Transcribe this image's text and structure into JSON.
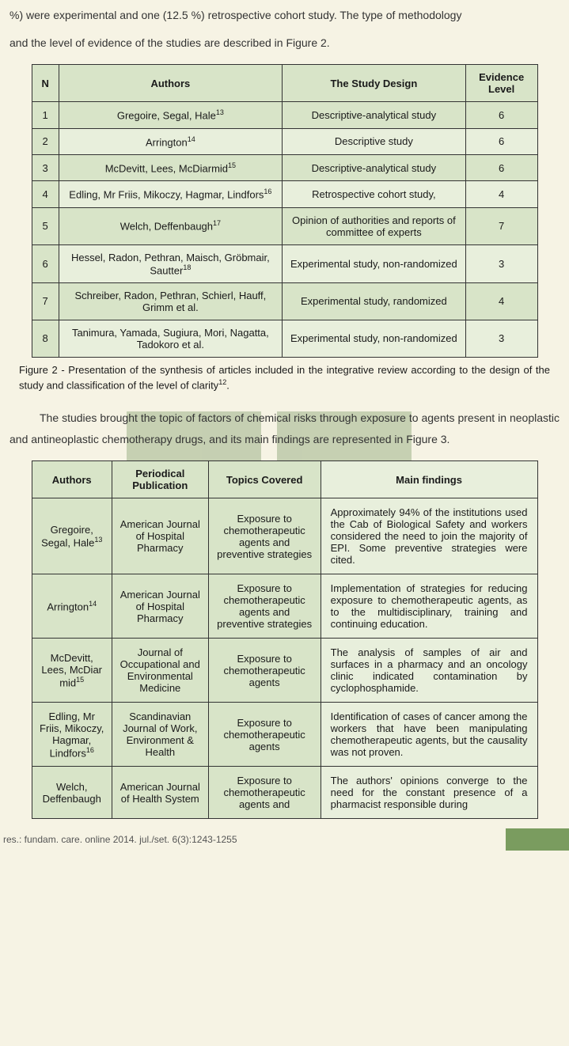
{
  "colors": {
    "page_bg": "#f6f3e4",
    "table_header_bg": "#d8e4c8",
    "table_alt_bg": "#e8efdc",
    "border": "#333333",
    "text": "#1a1a1a",
    "footer_block": "#7a9c5f",
    "watermark": "#6d8f56"
  },
  "typography": {
    "body_family": "Trebuchet MS",
    "body_size_pt": 11,
    "table_size_pt": 10,
    "lineheight": 1.9
  },
  "intro_top": "%) were experimental and one (12.5 %) retrospective cohort study. The type of methodology",
  "intro_top2": "and the level of evidence of the studies are described in Figure 2.",
  "table1": {
    "headers": [
      "N",
      "Authors",
      "The Study Design",
      "Evidence Level"
    ],
    "rows": [
      {
        "n": "1",
        "authors": "Gregoire, Segal, Hale",
        "ref": "13",
        "design": "Descriptive-analytical study",
        "evidence": "6"
      },
      {
        "n": "2",
        "authors": "Arrington",
        "ref": "14",
        "design": "Descriptive study",
        "evidence": "6"
      },
      {
        "n": "3",
        "authors": "McDevitt, Lees, McDiarmid",
        "ref": "15",
        "design": "Descriptive-analytical study",
        "evidence": "6"
      },
      {
        "n": "4",
        "authors": "Edling, Mr Friis, Mikoczy, Hagmar, Lindfors",
        "ref": "16",
        "design": "Retrospective cohort study,",
        "evidence": "4"
      },
      {
        "n": "5",
        "authors": "Welch, Deffenbaugh",
        "ref": "17",
        "design": "Opinion of authorities and reports of committee of experts",
        "evidence": "7"
      },
      {
        "n": "6",
        "authors": "Hessel, Radon, Pethran, Maisch, Gröbmair, Sautter",
        "ref": "18",
        "design": "Experimental study, non-randomized",
        "evidence": "3"
      },
      {
        "n": "7",
        "authors": "Schreiber, Radon, Pethran, Schierl, Hauff, Grimm et al.",
        "ref": "",
        "design": "Experimental study, randomized",
        "evidence": "4"
      },
      {
        "n": "8",
        "authors": "Tanimura, Yamada, Sugiura, Mori, Nagatta, Tadokoro et al.",
        "ref": "",
        "design": "Experimental study, non-randomized",
        "evidence": "3"
      }
    ]
  },
  "caption1": "Figure 2 - Presentation of the synthesis of articles included in the integrative review according to the design of the study and classification of the level of clarity",
  "caption1_ref": "12",
  "para_mid": "The studies brought the topic of factors of chemical risks through exposure to agents present in neoplastic and antineoplastic chemotherapy drugs, and its main findings are represented in Figure 3.",
  "table2": {
    "headers": [
      "Authors",
      "Periodical Publication",
      "Topics Covered",
      "Main findings"
    ],
    "rows": [
      {
        "authors": "Gregoire, Segal, Hale",
        "ref": "13",
        "journal": "American Journal of Hospital Pharmacy",
        "topics": "Exposure to chemotherapeutic agents and preventive strategies",
        "findings": "Approximately 94% of the institutions used the Cab of Biological Safety and workers considered the need to join the majority of EPI. Some preventive strategies were cited."
      },
      {
        "authors": "Arrington",
        "ref": "14",
        "journal": "American Journal of Hospital Pharmacy",
        "topics": "Exposure to chemotherapeutic agents and preventive strategies",
        "findings": "Implementation of strategies for reducing exposure to chemotherapeutic agents, as to the multidisciplinary, training and continuing education."
      },
      {
        "authors": "McDevitt, Lees, McDiar mid",
        "ref": "15",
        "journal": "Journal of Occupational and Environmental Medicine",
        "topics": "Exposure to chemotherapeutic agents",
        "findings": "The analysis of samples of air and surfaces in a pharmacy and an oncology clinic indicated contamination by cyclophosphamide."
      },
      {
        "authors": "Edling, Mr Friis, Mikoczy, Hagmar, Lindfors",
        "ref": "16",
        "journal": "Scandinavian Journal of Work, Environment & Health",
        "topics": "Exposure to chemotherapeutic agents",
        "findings": "Identification of cases of cancer among the workers that have been manipulating chemotherapeutic agents, but the causality was not proven."
      },
      {
        "authors": "Welch, Deffenbaugh",
        "ref": "",
        "journal": "American Journal of Health System",
        "topics": "Exposure to chemotherapeutic agents and",
        "findings": "The authors' opinions converge to the need for the constant presence of a pharmacist responsible during"
      }
    ]
  },
  "footer_text": "res.: fundam. care. online 2014. jul./set. 6(3):1243-1255"
}
